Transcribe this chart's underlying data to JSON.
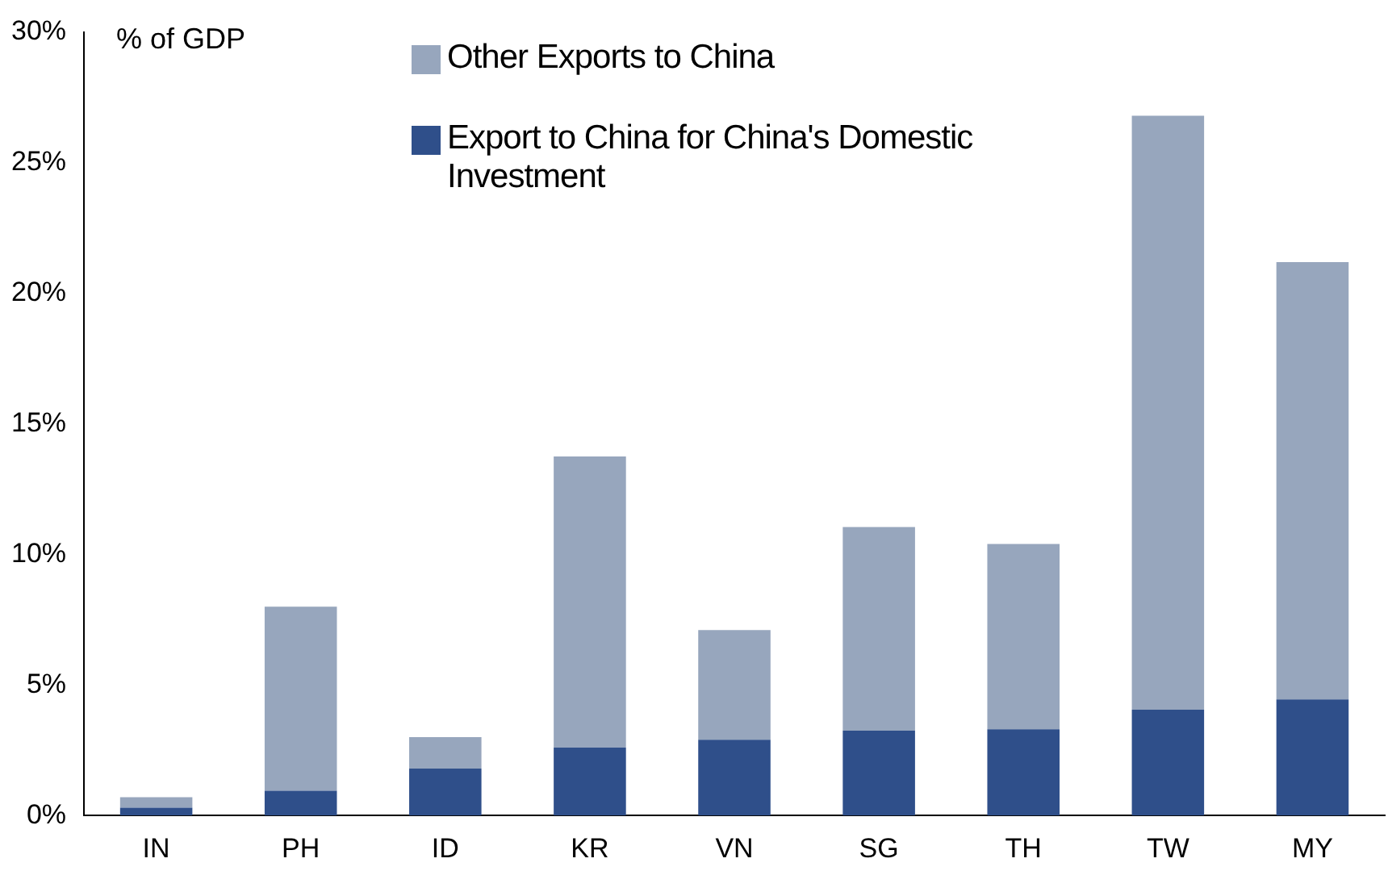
{
  "chart_data": {
    "type": "bar",
    "stacked": true,
    "ylabel": "% of GDP",
    "legend": "top",
    "grid": false,
    "categories": [
      "IN",
      "PH",
      "ID",
      "KR",
      "VN",
      "SG",
      "TH",
      "TW",
      "MY"
    ],
    "series": [
      {
        "name": "Export to China for China's Domestic Investment",
        "color": "#2f4f8a",
        "values": [
          0.3,
          0.95,
          1.8,
          2.6,
          2.9,
          3.25,
          3.3,
          4.05,
          4.45
        ]
      },
      {
        "name": "Other Exports to China",
        "color": "#97a6bd",
        "values": [
          0.4,
          7.05,
          1.2,
          11.15,
          4.2,
          7.8,
          7.1,
          22.75,
          16.75
        ]
      }
    ],
    "ylim": [
      0,
      30
    ],
    "yticks": [
      {
        "value": 0,
        "label": "0%"
      },
      {
        "value": 5,
        "label": "5%"
      },
      {
        "value": 10,
        "label": "10%"
      },
      {
        "value": 15,
        "label": "15%"
      },
      {
        "value": 20,
        "label": "20%"
      },
      {
        "value": 25,
        "label": "25%"
      },
      {
        "value": 30,
        "label": "30%"
      }
    ]
  }
}
